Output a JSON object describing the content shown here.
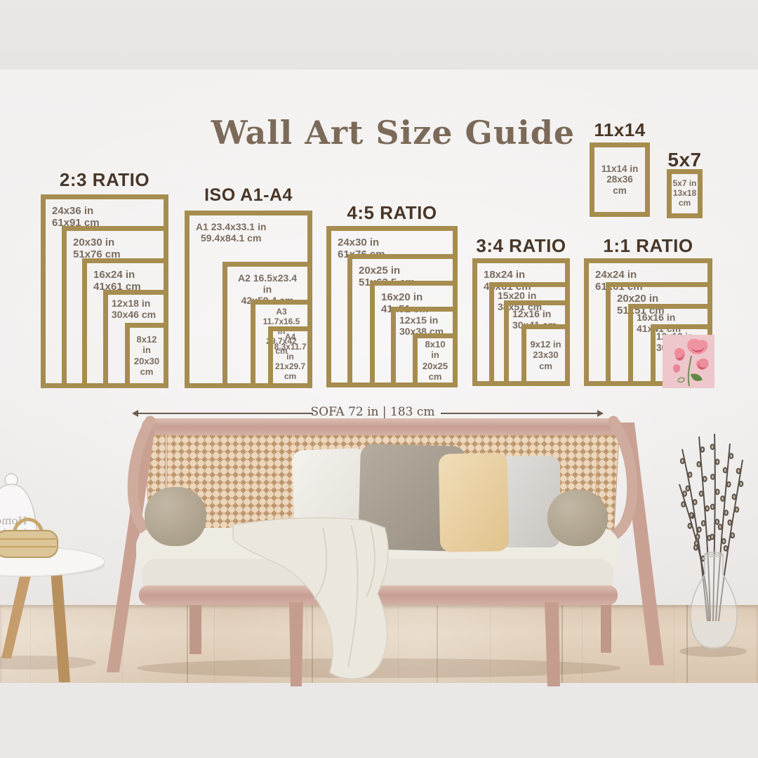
{
  "title": "Wall Art Size Guide",
  "measure": {
    "label": "SOFA 72 in | 183 cm"
  },
  "groups": [
    {
      "header": "2:3 RATIO",
      "frames": [
        {
          "size": "24x36 in",
          "metric": "61x91 cm"
        },
        {
          "size": "20x30 in",
          "metric": "51x76 cm"
        },
        {
          "size": "16x24 in",
          "metric": "41x61 cm"
        },
        {
          "size": "12x18 in",
          "metric": "30x46 cm"
        },
        {
          "size": "8x12 in",
          "metric": "20x30 cm"
        }
      ]
    },
    {
      "header": "ISO A1-A4",
      "frames": [
        {
          "size": "A1 23.4x33.1 in",
          "metric": "59.4x84.1 cm"
        },
        {
          "size": "A2 16.5x23.4 in",
          "metric": "42x59.4 cm"
        },
        {
          "size": "A3 11.7x16.5 in",
          "metric": "29.7x42 cm"
        },
        {
          "name": "A4",
          "size": "8.3x11.7 in",
          "metric": "21x29.7 cm"
        }
      ]
    },
    {
      "header": "4:5 RATIO",
      "frames": [
        {
          "size": "24x30 in",
          "metric": "61x76 cm"
        },
        {
          "size": "20x25 in",
          "metric": "51x63.5 cm"
        },
        {
          "size": "16x20 in",
          "metric": "41x51 cm"
        },
        {
          "size": "12x15 in",
          "metric": "30x38 cm"
        },
        {
          "size": "8x10 in",
          "metric": "20x25 cm"
        }
      ]
    },
    {
      "header": "3:4 RATIO",
      "frames": [
        {
          "size": "18x24 in",
          "metric": "46x61 cm"
        },
        {
          "size": "15x20 in",
          "metric": "38x51 cm"
        },
        {
          "size": "12x16 in",
          "metric": "30x41 cm"
        },
        {
          "size": "9x12 in",
          "metric": "23x30 cm"
        }
      ]
    },
    {
      "header": "1:1 RATIO",
      "frames": [
        {
          "size": "24x24 in",
          "metric": "61x61 cm"
        },
        {
          "size": "20x20 in",
          "metric": "51x51 cm"
        },
        {
          "size": "16x16 in",
          "metric": "41x41 cm"
        },
        {
          "size": "12x12 in",
          "metric": "30x30 cm"
        }
      ]
    }
  ],
  "singles": [
    {
      "header": "11x14",
      "size": "11x14 in",
      "metric": "28x36 cm"
    },
    {
      "header": "5x7",
      "size": "5x7 in",
      "metric": "13x18 cm"
    }
  ],
  "decor": {
    "cloche_text": "Home",
    "cloche_text2": "& garden"
  },
  "colors": {
    "frame_gold": "#a68d4f",
    "header_brown": "#483628",
    "label_brown": "#7a6c60",
    "title_brown": "#7b6a59",
    "measure_brown": "#5f5146",
    "flower_bg": "#edc7cb",
    "wood_pink": "#cba79a",
    "cane_tan": "#ecd7bd"
  }
}
